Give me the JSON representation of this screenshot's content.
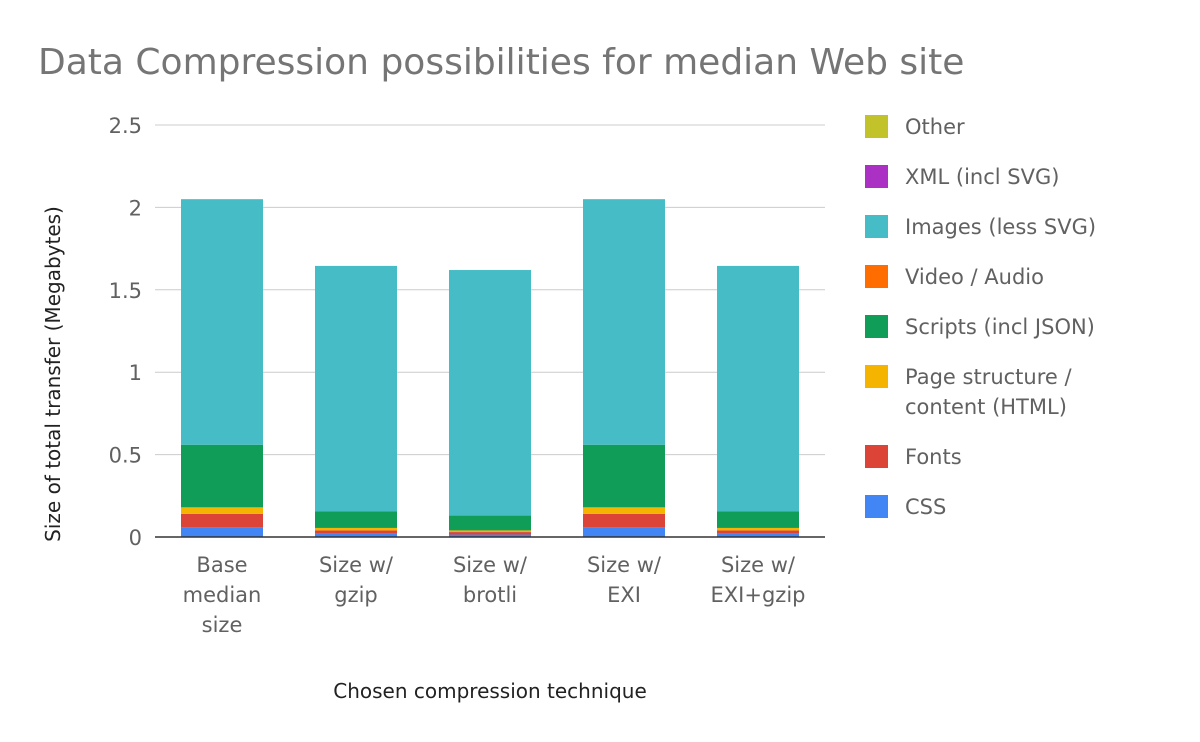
{
  "chart_data": {
    "type": "bar",
    "stacked": true,
    "title": "Data Compression possibilities for median Web site",
    "xlabel": "Chosen compression technique",
    "ylabel": "Size of total transfer (Megabytes)",
    "ylim": [
      0,
      2.5
    ],
    "yticks": [
      0,
      0.5,
      1,
      1.5,
      2,
      2.5
    ],
    "ytick_labels": [
      "0",
      "0.5",
      "1",
      "1.5",
      "2",
      "2.5"
    ],
    "grid": true,
    "legend_position": "right",
    "categories": [
      [
        "Base",
        "median",
        "size"
      ],
      [
        "Size w/",
        "gzip"
      ],
      [
        "Size w/",
        "brotli"
      ],
      [
        "Size w/",
        "EXI"
      ],
      [
        "Size w/",
        "EXI+gzip"
      ]
    ],
    "series": [
      {
        "name": "CSS",
        "color": "#4285f4",
        "values": [
          0.06,
          0.02,
          0.015,
          0.06,
          0.02
        ]
      },
      {
        "name": "Fonts",
        "color": "#db4437",
        "values": [
          0.08,
          0.02,
          0.015,
          0.08,
          0.02
        ]
      },
      {
        "name": "Page structure / content (HTML)",
        "legend_lines": [
          "Page structure /",
          "content (HTML)"
        ],
        "color": "#f4b400",
        "values": [
          0.04,
          0.015,
          0.01,
          0.04,
          0.015
        ]
      },
      {
        "name": "Scripts (incl JSON)",
        "color": "#0f9d58",
        "values": [
          0.38,
          0.1,
          0.09,
          0.38,
          0.1
        ]
      },
      {
        "name": "Video / Audio",
        "color": "#ff6d00",
        "values": [
          0,
          0,
          0,
          0,
          0
        ]
      },
      {
        "name": "Images (less SVG)",
        "color": "#46bdc6",
        "values": [
          1.49,
          1.49,
          1.49,
          1.49,
          1.49
        ]
      },
      {
        "name": "XML (incl SVG)",
        "color": "#ab30c4",
        "values": [
          0,
          0,
          0,
          0,
          0
        ]
      },
      {
        "name": "Other",
        "color": "#c2c22a",
        "values": [
          0,
          0,
          0,
          0,
          0
        ]
      }
    ]
  }
}
